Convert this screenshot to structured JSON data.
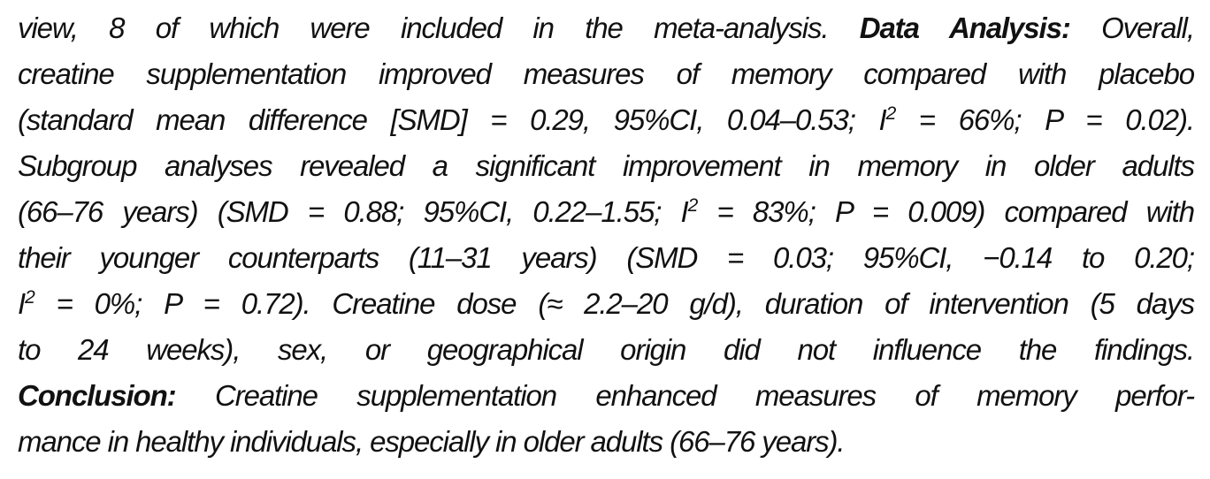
{
  "abstract": {
    "lines": [
      [
        "view, 8 of which were included in the meta-analysis. ",
        "Data Analysis:",
        " Overall,"
      ],
      [
        "creatine supplementation improved measures of memory compared with placebo"
      ],
      [
        "(standard mean difference [SMD] = 0.29, 95%CI, 0.04–0.53; I",
        "2",
        " = 66%; P = 0.02)."
      ],
      [
        "Subgroup analyses revealed a significant improvement in memory in older adults"
      ],
      [
        "(66–76 years) (SMD = 0.88; 95%CI, 0.22–1.55; I",
        "2",
        " = 83%; P = 0.009) compared with"
      ],
      [
        "their younger counterparts (11–31 years) (SMD = 0.03; 95%CI, −0.14 to 0.20;"
      ],
      [
        "I",
        "2",
        " = 0%; P = 0.72). Creatine dose (≈ 2.2–20 g/d), duration of intervention (5 days"
      ],
      [
        "to 24 weeks), sex, or geographical origin did not influence the findings."
      ],
      [
        "Conclusion:",
        " Creatine supplementation enhanced measures of memory perfor-"
      ],
      [
        "mance in healthy individuals, especially in older adults (66–76 years)."
      ]
    ]
  }
}
